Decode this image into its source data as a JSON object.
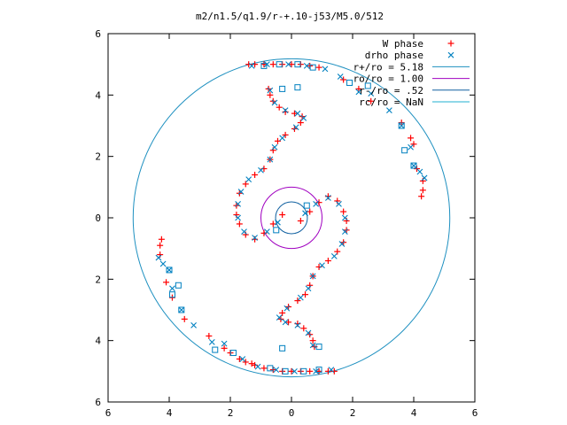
{
  "chart_data": {
    "type": "scatter",
    "title": "m2/n1.5/q1.9/r-+.10-j53/M5.0/512",
    "xlabel": "",
    "ylabel": "",
    "xlim": [
      -6,
      6
    ],
    "ylim": [
      -6,
      6
    ],
    "x_ticks": [
      -6,
      -4,
      -2,
      0,
      2,
      4,
      6
    ],
    "y_ticks": [
      -6,
      -4,
      -2,
      0,
      2,
      4,
      6
    ],
    "x_tick_labels": [
      "6",
      "4",
      "2",
      "0",
      "2",
      "4",
      "6"
    ],
    "y_tick_labels": [
      "6",
      "4",
      "2",
      "0",
      "2",
      "4",
      "6"
    ],
    "grid": false,
    "legend_position": "top-right",
    "legend": [
      {
        "label": "W phase",
        "marker": "plus",
        "color": "#ff0000"
      },
      {
        "label": "drho phase",
        "marker": "x",
        "color": "#0080c0"
      },
      {
        "label": "r+/ro = 5.18",
        "marker": "line",
        "color": "#1e90c0"
      },
      {
        "label": "ro/ro = 1.00",
        "marker": "line",
        "color": "#a000c0"
      },
      {
        "label": "r-/ro = .52",
        "marker": "line",
        "color": "#1060a0"
      },
      {
        "label": "rc/ro = NaN",
        "marker": "line",
        "color": "#20b0d0"
      }
    ],
    "circles": [
      {
        "name": "r+/ro = 5.18",
        "r": 5.18,
        "color": "#1e90c0"
      },
      {
        "name": "ro/ro = 1.00",
        "r": 1.0,
        "color": "#a000c0"
      },
      {
        "name": "r-/ro = .52",
        "r": 0.52,
        "color": "#1060a0"
      }
    ],
    "series": [
      {
        "name": "W phase",
        "marker": "plus",
        "color": "#ff0000",
        "points": [
          [
            -0.75,
            4.2
          ],
          [
            -0.7,
            4.0
          ],
          [
            -0.6,
            3.8
          ],
          [
            -0.4,
            3.6
          ],
          [
            -0.2,
            3.45
          ],
          [
            0.1,
            3.4
          ],
          [
            0.35,
            3.3
          ],
          [
            0.3,
            3.1
          ],
          [
            0.1,
            2.9
          ],
          [
            -0.2,
            2.7
          ],
          [
            -0.45,
            2.5
          ],
          [
            -0.6,
            2.2
          ],
          [
            -0.7,
            1.9
          ],
          [
            -0.9,
            1.6
          ],
          [
            -1.2,
            1.4
          ],
          [
            -1.5,
            1.1
          ],
          [
            -1.7,
            0.8
          ],
          [
            -1.8,
            0.4
          ],
          [
            -1.8,
            0.1
          ],
          [
            -1.7,
            -0.2
          ],
          [
            -1.5,
            -0.55
          ],
          [
            -1.2,
            -0.7
          ],
          [
            -0.9,
            -0.5
          ],
          [
            -0.6,
            -0.2
          ],
          [
            -0.3,
            0.1
          ],
          [
            0.75,
            -4.2
          ],
          [
            0.7,
            -4.0
          ],
          [
            0.6,
            -3.8
          ],
          [
            0.4,
            -3.6
          ],
          [
            0.2,
            -3.45
          ],
          [
            -0.1,
            -3.4
          ],
          [
            -0.35,
            -3.3
          ],
          [
            -0.3,
            -3.1
          ],
          [
            -0.1,
            -2.9
          ],
          [
            0.2,
            -2.7
          ],
          [
            0.45,
            -2.5
          ],
          [
            0.6,
            -2.2
          ],
          [
            0.7,
            -1.9
          ],
          [
            0.9,
            -1.6
          ],
          [
            1.2,
            -1.4
          ],
          [
            1.5,
            -1.1
          ],
          [
            1.7,
            -0.8
          ],
          [
            1.8,
            -0.4
          ],
          [
            1.8,
            -0.1
          ],
          [
            1.7,
            0.2
          ],
          [
            1.5,
            0.55
          ],
          [
            1.2,
            0.7
          ],
          [
            0.9,
            0.5
          ],
          [
            0.6,
            0.2
          ],
          [
            0.3,
            -0.1
          ],
          [
            -1.4,
            5.0
          ],
          [
            -1.2,
            5.0
          ],
          [
            -0.9,
            5.0
          ],
          [
            -0.6,
            5.0
          ],
          [
            -0.3,
            5.0
          ],
          [
            0.0,
            5.0
          ],
          [
            0.3,
            5.0
          ],
          [
            0.6,
            4.95
          ],
          [
            0.9,
            4.9
          ],
          [
            1.4,
            -5.0
          ],
          [
            1.2,
            -5.0
          ],
          [
            0.9,
            -5.0
          ],
          [
            0.6,
            -5.0
          ],
          [
            0.3,
            -5.0
          ],
          [
            0.0,
            -5.0
          ],
          [
            -0.3,
            -5.0
          ],
          [
            -0.6,
            -4.95
          ],
          [
            -0.9,
            -4.9
          ],
          [
            -1.2,
            -4.8
          ],
          [
            -1.3,
            -4.75
          ],
          [
            -1.5,
            -4.7
          ],
          [
            -1.7,
            -4.6
          ],
          [
            -2.0,
            -4.4
          ],
          [
            -2.2,
            -4.25
          ],
          [
            -2.7,
            -3.85
          ],
          [
            -3.5,
            -3.3
          ],
          [
            -3.9,
            -2.6
          ],
          [
            -4.1,
            -2.1
          ],
          [
            -4.3,
            -1.2
          ],
          [
            -4.3,
            -0.9
          ],
          [
            -4.25,
            -0.7
          ],
          [
            4.3,
            1.2
          ],
          [
            4.3,
            0.9
          ],
          [
            4.25,
            0.7
          ],
          [
            4.1,
            1.6
          ],
          [
            4.0,
            2.4
          ],
          [
            3.9,
            2.6
          ],
          [
            3.6,
            3.1
          ],
          [
            2.6,
            3.8
          ],
          [
            2.2,
            4.2
          ],
          [
            1.7,
            4.5
          ]
        ]
      },
      {
        "name": "drho phase",
        "marker": "x",
        "color": "#0080c0",
        "points": [
          [
            -0.7,
            4.15
          ],
          [
            -0.55,
            3.75
          ],
          [
            -0.2,
            3.5
          ],
          [
            0.2,
            3.4
          ],
          [
            0.4,
            3.25
          ],
          [
            0.15,
            2.95
          ],
          [
            -0.3,
            2.6
          ],
          [
            -0.55,
            2.3
          ],
          [
            -0.7,
            1.9
          ],
          [
            -1.0,
            1.55
          ],
          [
            -1.4,
            1.25
          ],
          [
            -1.65,
            0.85
          ],
          [
            -1.75,
            0.45
          ],
          [
            -1.75,
            0.0
          ],
          [
            -1.55,
            -0.45
          ],
          [
            -1.2,
            -0.65
          ],
          [
            -0.8,
            -0.45
          ],
          [
            -0.45,
            -0.15
          ],
          [
            0.7,
            -4.15
          ],
          [
            0.55,
            -3.75
          ],
          [
            0.2,
            -3.5
          ],
          [
            -0.2,
            -3.4
          ],
          [
            -0.4,
            -3.25
          ],
          [
            -0.15,
            -2.95
          ],
          [
            0.3,
            -2.6
          ],
          [
            0.55,
            -2.3
          ],
          [
            0.7,
            -1.9
          ],
          [
            1.0,
            -1.55
          ],
          [
            1.4,
            -1.25
          ],
          [
            1.65,
            -0.85
          ],
          [
            1.75,
            -0.45
          ],
          [
            1.75,
            0.0
          ],
          [
            1.55,
            0.45
          ],
          [
            1.2,
            0.65
          ],
          [
            0.8,
            0.45
          ],
          [
            0.45,
            0.15
          ],
          [
            -1.3,
            4.95
          ],
          [
            -0.8,
            5.0
          ],
          [
            -0.1,
            5.0
          ],
          [
            0.5,
            4.95
          ],
          [
            1.1,
            4.85
          ],
          [
            1.6,
            4.6
          ],
          [
            2.2,
            4.1
          ],
          [
            3.6,
            3.0
          ],
          [
            3.9,
            2.3
          ],
          [
            4.0,
            1.7
          ],
          [
            1.3,
            -4.95
          ],
          [
            0.8,
            -5.0
          ],
          [
            0.1,
            -5.0
          ],
          [
            -0.5,
            -4.95
          ],
          [
            -1.1,
            -4.85
          ],
          [
            -1.6,
            -4.6
          ],
          [
            -2.2,
            -4.1
          ],
          [
            -3.6,
            -3.0
          ],
          [
            -3.9,
            -2.3
          ],
          [
            -4.0,
            -1.7
          ],
          [
            -4.2,
            -1.5
          ],
          [
            -4.35,
            -1.3
          ],
          [
            4.2,
            1.5
          ],
          [
            4.35,
            1.3
          ],
          [
            -2.6,
            -4.05
          ],
          [
            -3.2,
            -3.5
          ],
          [
            2.6,
            4.05
          ],
          [
            3.2,
            3.5
          ]
        ]
      }
    ],
    "drho_squares": [
      [
        -0.9,
        4.95
      ],
      [
        -0.4,
        5.0
      ],
      [
        0.2,
        5.0
      ],
      [
        0.7,
        4.9
      ],
      [
        -0.3,
        4.2
      ],
      [
        0.2,
        4.25
      ],
      [
        0.9,
        -4.2
      ],
      [
        -0.3,
        -4.25
      ],
      [
        0.9,
        -4.95
      ],
      [
        0.4,
        -5.0
      ],
      [
        -0.2,
        -5.0
      ],
      [
        -0.7,
        -4.9
      ],
      [
        -3.9,
        -2.5
      ],
      [
        -3.7,
        -2.2
      ],
      [
        -3.6,
        -3.0
      ],
      [
        -2.5,
        -4.3
      ],
      [
        -4.0,
        -1.7
      ],
      [
        2.5,
        4.3
      ],
      [
        3.6,
        3.0
      ],
      [
        4.0,
        1.7
      ],
      [
        3.7,
        2.2
      ],
      [
        0.5,
        0.4
      ],
      [
        -0.5,
        -0.4
      ],
      [
        1.9,
        4.4
      ],
      [
        -1.9,
        -4.4
      ]
    ]
  }
}
